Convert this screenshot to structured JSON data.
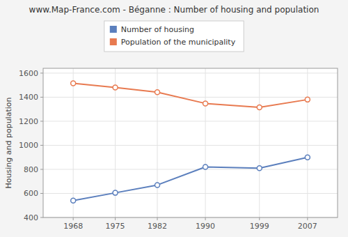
{
  "chart_data": {
    "type": "line",
    "title": "www.Map-France.com - Béganne : Number of housing and population",
    "y_label": "Housing and population",
    "x": [
      1968,
      1975,
      1982,
      1990,
      1999,
      2007
    ],
    "series": [
      {
        "name": "Number of housing",
        "color": "#5b7fbd",
        "values": [
          540,
          605,
          670,
          820,
          810,
          900
        ]
      },
      {
        "name": "Population of the municipality",
        "color": "#e87a50",
        "values": [
          1515,
          1480,
          1442,
          1348,
          1315,
          1380
        ]
      }
    ],
    "xlim": [
      1963,
      2012
    ],
    "xticks": [
      1968,
      1975,
      1982,
      1990,
      1999,
      2007
    ],
    "ylim": [
      400,
      1640
    ],
    "yticks": [
      400,
      600,
      800,
      1000,
      1200,
      1400,
      1600
    ],
    "grid": true,
    "legend": "top",
    "marker": "circle"
  }
}
